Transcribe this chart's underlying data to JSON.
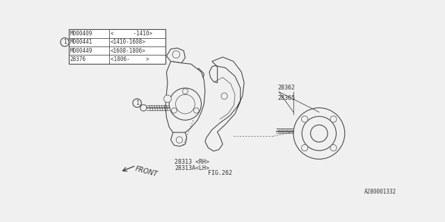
{
  "bg_color": "#f0f0f0",
  "line_color": "#444444",
  "text_color": "#333333",
  "part_number_bottom_right": "A280001332",
  "table_rows": [
    [
      "M000409",
      "<      -1410>"
    ],
    [
      "M000441",
      "<1410-1608>"
    ],
    [
      "M000449",
      "<1608-1806>"
    ],
    [
      "28376",
      "<1806-     >"
    ]
  ],
  "label_28313rh": "28313 <RH>",
  "label_28313lh": "28313A<LH>",
  "label_fig262": "FIG.262",
  "label_28362": "28362",
  "label_28365": "28365",
  "label_front": "FRONT"
}
